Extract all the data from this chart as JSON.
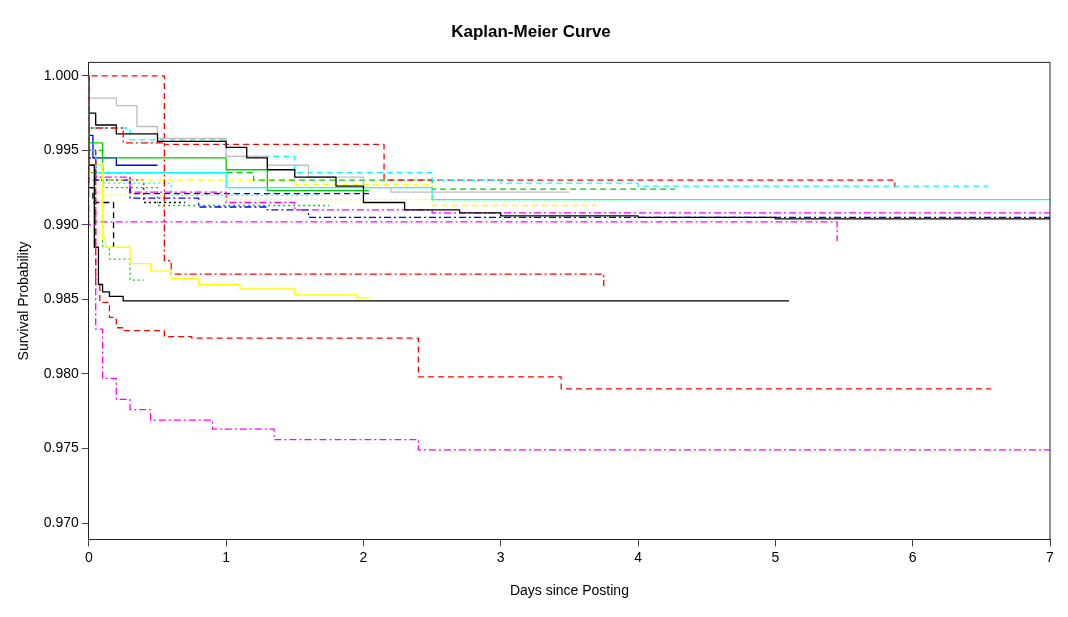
{
  "chart_data": {
    "type": "step",
    "title": "Kaplan-Meier Curve",
    "xlabel": "Days since Posting",
    "ylabel": "Survival Probability",
    "xlim": [
      0,
      7
    ],
    "xticks": [
      0,
      1,
      2,
      3,
      4,
      5,
      6,
      7
    ],
    "ylim": [
      0.9689,
      1.0009
    ],
    "yticks": [
      {
        "value": 0.97,
        "label": "0.970"
      },
      {
        "value": 0.975,
        "label": "0.975"
      },
      {
        "value": 0.98,
        "label": "0.980"
      },
      {
        "value": 0.985,
        "label": "0.985"
      },
      {
        "value": 0.99,
        "label": "0.990"
      },
      {
        "value": 0.995,
        "label": "0.995"
      },
      {
        "value": 1,
        "label": "1.000"
      }
    ],
    "grid": false,
    "legend": false,
    "marker": "none",
    "series": [
      {
        "color": "#ff0000",
        "line_style": "dashed",
        "x": [
          0,
          0.05,
          0.08,
          0.15,
          0.2,
          0.25,
          0.55,
          0.75,
          2.4,
          3.44,
          5.12,
          6.57
        ],
        "values": [
          1,
          0.995,
          0.986,
          0.9848,
          0.9838,
          0.9831,
          0.9829,
          0.9825,
          0.9824,
          0.9798,
          0.979,
          0.979
        ]
      },
      {
        "color": "#ff00ff",
        "line_style": "dashdot",
        "x": [
          0,
          0.05,
          0.1,
          0.2,
          0.3,
          0.45,
          0.9,
          1.35,
          2.4,
          6.17,
          7
        ],
        "values": [
          1,
          0.99,
          0.983,
          0.9797,
          0.9783,
          0.9776,
          0.9769,
          0.9763,
          0.9756,
          0.9749,
          0.9749
        ]
      },
      {
        "color": "#000000",
        "line_style": "solid",
        "x": [
          0,
          0.04,
          0.07,
          0.1,
          0.15,
          0.25,
          2.02,
          5.1
        ],
        "values": [
          1,
          0.994,
          0.9885,
          0.986,
          0.9855,
          0.9852,
          0.9849,
          0.9849
        ]
      },
      {
        "color": "#ffff00",
        "line_style": "solid",
        "x": [
          0,
          0.1,
          0.12,
          0.3,
          0.45,
          0.6,
          0.8,
          1.1,
          1.5,
          1.95,
          2.05
        ],
        "values": [
          1,
          0.994,
          0.9891,
          0.9885,
          0.9874,
          0.9869,
          0.9864,
          0.986,
          0.9857,
          0.9853,
          0.9851
        ]
      },
      {
        "color": "#ff0000",
        "line_style": "dashdot",
        "x": [
          0,
          0.25,
          0.55,
          0.6,
          0.9,
          3.75,
          3.75
        ],
        "values": [
          1,
          0.9965,
          0.9955,
          0.9876,
          0.9867,
          0.9867,
          0.9859
        ]
      },
      {
        "color": "#00cc00",
        "line_style": "dotted",
        "x": [
          0,
          0.1,
          0.15,
          0.3,
          0.4
        ],
        "values": [
          1,
          0.993,
          0.9885,
          0.9877,
          0.9863
        ]
      },
      {
        "color": "#000000",
        "line_style": "dashed",
        "x": [
          0,
          0.03,
          0.18,
          0.18
        ],
        "values": [
          1,
          0.9925,
          0.9915,
          0.9885
        ]
      },
      {
        "color": "#000000",
        "line_style": "solid",
        "x": [
          0,
          0.05,
          0.2,
          0.5,
          1,
          1.15,
          1.3,
          1.5,
          1.8,
          2,
          2.3,
          2.7,
          3,
          4,
          5,
          7
        ],
        "values": [
          1,
          0.9975,
          0.9967,
          0.9961,
          0.9956,
          0.9952,
          0.9945,
          0.9937,
          0.9932,
          0.9926,
          0.9915,
          0.991,
          0.9908,
          0.9906,
          0.9905,
          0.9904
        ]
      },
      {
        "color": "#bebebe",
        "line_style": "solid",
        "x": [
          0,
          0.2,
          0.35,
          0.5,
          1,
          1.3,
          1.6,
          2,
          2.2,
          3.5
        ],
        "values": [
          1,
          0.9985,
          0.998,
          0.9966,
          0.9958,
          0.9946,
          0.994,
          0.9932,
          0.9925,
          0.9922
        ]
      },
      {
        "color": "#00ffff",
        "line_style": "dashed",
        "x": [
          0,
          0.3,
          1,
          1.5,
          2.5,
          3,
          4,
          6.55
        ],
        "values": [
          1,
          0.9965,
          0.9957,
          0.9946,
          0.9935,
          0.993,
          0.9928,
          0.9926
        ]
      },
      {
        "color": "#ff0000",
        "line_style": "dashed",
        "x": [
          0,
          0.55,
          0.55,
          2.15,
          3,
          5.87,
          5.87
        ],
        "values": [
          1,
          1,
          0.9955,
          0.9954,
          0.993,
          0.993,
          0.9925
        ]
      },
      {
        "color": "#00ffff",
        "line_style": "solid",
        "x": [
          0,
          0.05,
          1,
          2.5,
          4.24,
          7
        ],
        "values": [
          1,
          0.995,
          0.9935,
          0.9925,
          0.9917,
          0.9917
        ]
      },
      {
        "color": "#00cc00",
        "line_style": "dashed",
        "x": [
          0,
          0.1,
          1.2,
          2.5,
          4.27
        ],
        "values": [
          1,
          0.995,
          0.9935,
          0.993,
          0.9924
        ]
      },
      {
        "color": "#00cc00",
        "line_style": "solid",
        "x": [
          0,
          0.1,
          1,
          1.3,
          2.04
        ],
        "values": [
          1,
          0.9955,
          0.9945,
          0.9937,
          0.9923
        ]
      },
      {
        "color": "#ffff00",
        "line_style": "dashed",
        "x": [
          0,
          0.1,
          1.5,
          2.5,
          3.7
        ],
        "values": [
          1,
          0.9935,
          0.993,
          0.9927,
          0.9913
        ]
      },
      {
        "color": "#ffff00",
        "line_style": "dotted",
        "x": [
          0,
          0.1,
          1,
          2.5,
          3.9
        ],
        "values": [
          1,
          0.9925,
          0.992,
          0.9917,
          0.9916
        ]
      },
      {
        "color": "#ff00ff",
        "line_style": "dashdot",
        "x": [
          0,
          0.05,
          0.3,
          1,
          1.5,
          2.5,
          7
        ],
        "values": [
          1,
          0.994,
          0.9932,
          0.9922,
          0.9915,
          0.991,
          0.9908
        ]
      },
      {
        "color": "#0000ff",
        "line_style": "dashdot",
        "x": [
          0,
          0.05,
          0.3,
          0.8,
          1.3,
          1.6,
          2,
          7
        ],
        "values": [
          1,
          0.9945,
          0.993,
          0.9918,
          0.9912,
          0.991,
          0.9905,
          0.9905
        ]
      },
      {
        "color": "#ff00ff",
        "line_style": "dashdot",
        "x": [
          0,
          0.05,
          1,
          5.45,
          5.45
        ],
        "values": [
          1,
          0.9925,
          0.9902,
          0.9902,
          0.9889
        ]
      },
      {
        "color": "#0000ff",
        "line_style": "dashed",
        "x": [
          0,
          0.1,
          0.3,
          2.04
        ],
        "values": [
          1,
          0.994,
          0.9935,
          0.9921
        ]
      },
      {
        "color": "#00cc00",
        "line_style": "dotted",
        "x": [
          0,
          0.1,
          0.5,
          1.75
        ],
        "values": [
          1,
          0.9935,
          0.9925,
          0.9913
        ]
      },
      {
        "color": "#00ffff",
        "line_style": "dotted",
        "x": [
          0,
          0.1,
          0.6,
          1.7
        ],
        "values": [
          1,
          0.994,
          0.9928,
          0.992
        ]
      },
      {
        "color": "#000000",
        "line_style": "dotted",
        "x": [
          0,
          0.05,
          0.4,
          0.7
        ],
        "values": [
          1,
          0.9945,
          0.993,
          0.9915
        ]
      },
      {
        "color": "#0000ff",
        "line_style": "solid",
        "x": [
          0,
          0.03,
          0.2,
          0.5
        ],
        "values": [
          1,
          0.996,
          0.9945,
          0.994
        ]
      }
    ]
  }
}
